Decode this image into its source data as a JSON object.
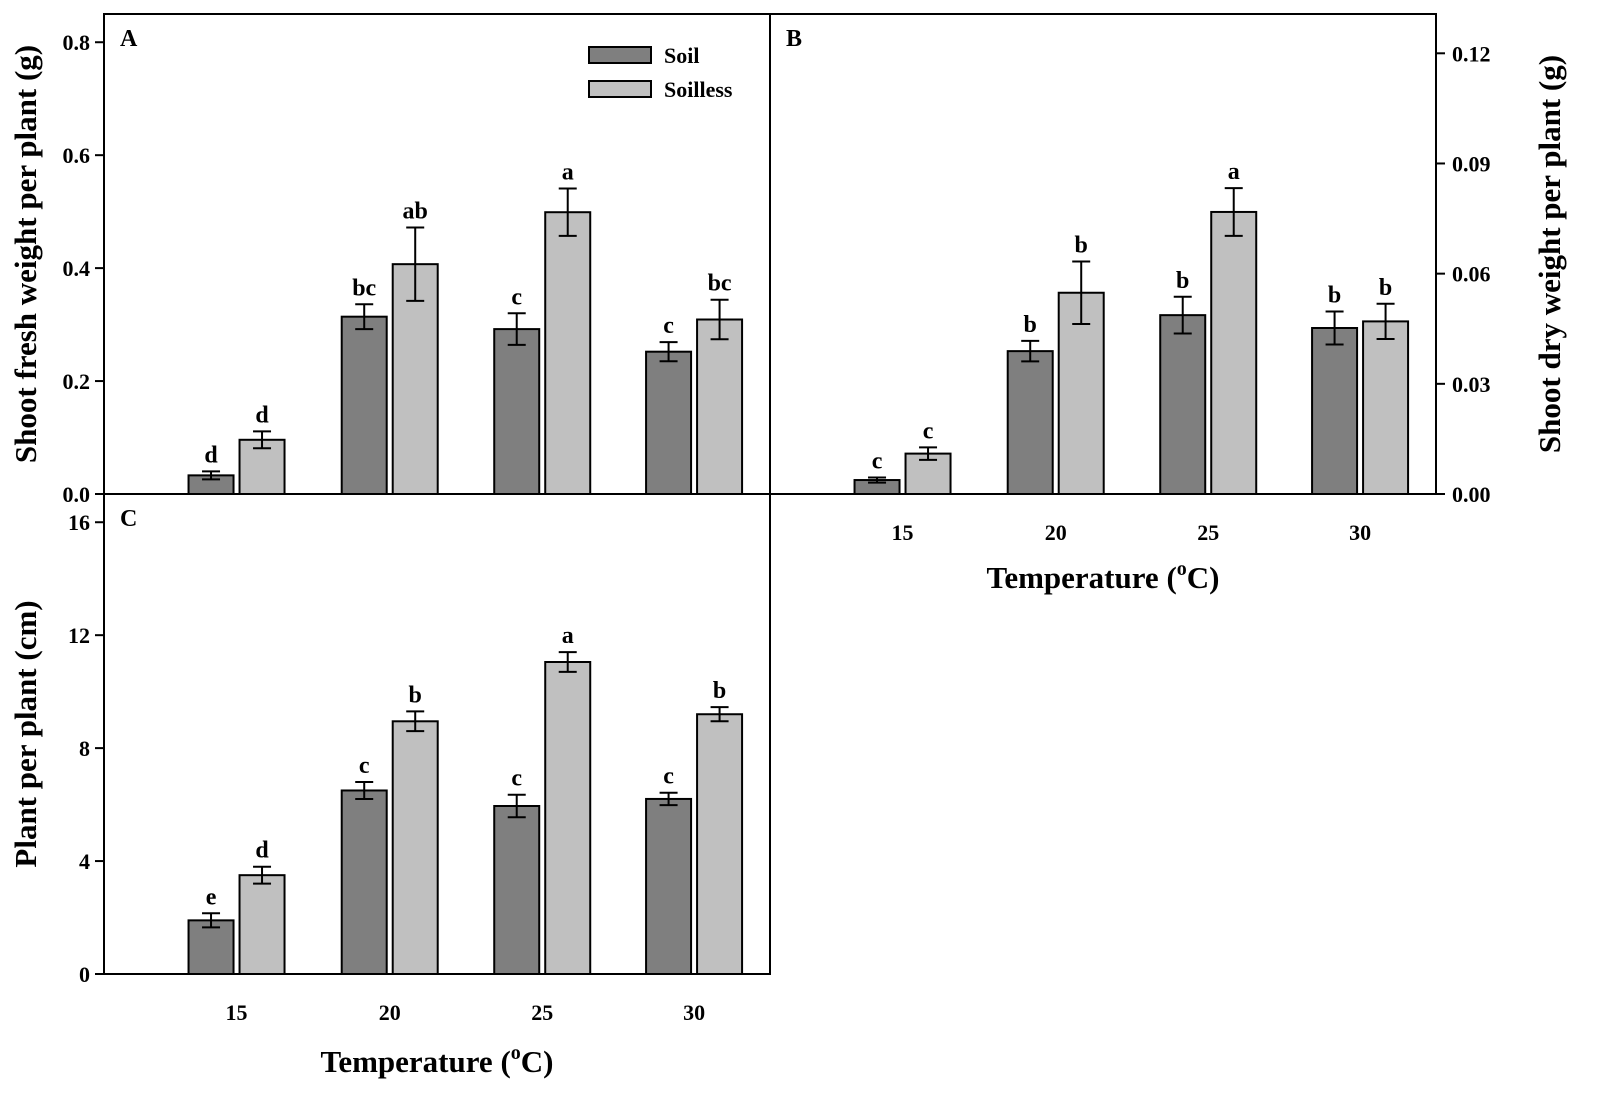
{
  "figure": {
    "legend": {
      "soil": "Soil",
      "soilless": "Soilless"
    },
    "colors": {
      "soil": "#7f7f7f",
      "soilless": "#c0c0c0",
      "stroke": "#000000"
    },
    "x_title_prefix": "Temperature (",
    "x_title_degree": "o",
    "x_title_suffix": "C)"
  },
  "chart_data": [
    {
      "panel": "A",
      "type": "bar",
      "categories": [
        "15",
        "20",
        "25",
        "30"
      ],
      "ylabel": "Shoot fresh weight per plant (g)",
      "xlabel": "",
      "ylim": [
        0,
        0.85
      ],
      "yticks": [
        "0.0",
        "0.2",
        "0.4",
        "0.6",
        "0.8"
      ],
      "series": [
        {
          "name": "Soil",
          "values": [
            0.033,
            0.314,
            0.292,
            0.252
          ],
          "errors": [
            0.007,
            0.022,
            0.028,
            0.017
          ],
          "letters": [
            "d",
            "bc",
            "c",
            "c"
          ]
        },
        {
          "name": "Soilless",
          "values": [
            0.096,
            0.407,
            0.499,
            0.309
          ],
          "errors": [
            0.015,
            0.065,
            0.042,
            0.035
          ],
          "letters": [
            "d",
            "ab",
            "a",
            "bc"
          ]
        }
      ]
    },
    {
      "panel": "B",
      "type": "bar",
      "categories": [
        "15",
        "20",
        "25",
        "30"
      ],
      "ylabel": "Shoot dry weight per plant (g)",
      "xlabel": "Temperature (oC)",
      "ylim": [
        0,
        0.1307
      ],
      "yticks": [
        "0.00",
        "0.03",
        "0.06",
        "0.09",
        "0.12"
      ],
      "series": [
        {
          "name": "Soil",
          "values": [
            0.0038,
            0.0389,
            0.0487,
            0.0452
          ],
          "errors": [
            0.0007,
            0.0028,
            0.005,
            0.0045
          ],
          "letters": [
            "c",
            "b",
            "b",
            "b"
          ]
        },
        {
          "name": "Soilless",
          "values": [
            0.011,
            0.0548,
            0.0768,
            0.047
          ],
          "errors": [
            0.0017,
            0.0085,
            0.0065,
            0.0048
          ],
          "letters": [
            "c",
            "b",
            "a",
            "b"
          ]
        }
      ]
    },
    {
      "panel": "C",
      "type": "bar",
      "categories": [
        "15",
        "20",
        "25",
        "30"
      ],
      "ylabel": "Plant  per plant (cm)",
      "xlabel": "Temperature (oC)",
      "ylim": [
        0,
        17
      ],
      "yticks": [
        "0",
        "4",
        "8",
        "12",
        "16"
      ],
      "series": [
        {
          "name": "Soil",
          "values": [
            1.9,
            6.5,
            5.95,
            6.2
          ],
          "errors": [
            0.25,
            0.3,
            0.4,
            0.22
          ],
          "letters": [
            "e",
            "c",
            "c",
            "c"
          ]
        },
        {
          "name": "Soilless",
          "values": [
            3.5,
            8.95,
            11.05,
            9.2
          ],
          "errors": [
            0.3,
            0.35,
            0.35,
            0.25
          ],
          "letters": [
            "d",
            "b",
            "a",
            "b"
          ]
        }
      ]
    }
  ]
}
